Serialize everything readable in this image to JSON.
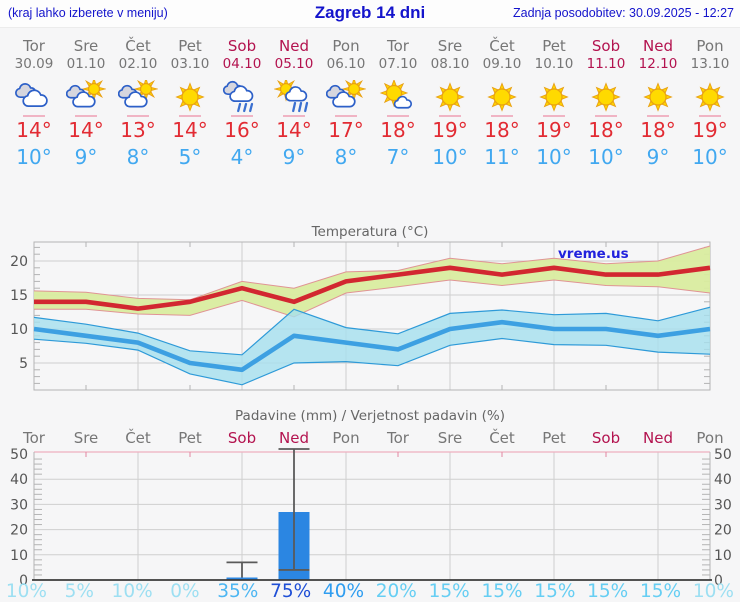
{
  "header": {
    "left": "(kraj lahko izberete v meniju)",
    "title": "Zagreb 14 dni",
    "right": "Zadnja posodobitev: 30.09.2025 - 12:27"
  },
  "watermark": "vreme.us",
  "colors": {
    "weekend": "#b3134f",
    "weekday": "#767676",
    "temp_max_text": "#e22b33",
    "temp_min_text": "#41a8f0",
    "line_red": "#d22730",
    "line_blue": "#3da0e2",
    "band_green": "#d9ec9f",
    "band_green_edge": "#e09494",
    "band_blue": "#a5e0ee",
    "band_blue_edge": "#2e9ad8",
    "bar_blue": "#2b86e2",
    "watermark_blue": "#2121dd",
    "header_blue": "#1414cc"
  },
  "days": [
    {
      "name": "Tor",
      "date": "30.09",
      "weekend": false,
      "icon": "cloudy",
      "tmax": "14°",
      "tmin": "10°",
      "prob": "10%",
      "prob_color": "#9ddff2"
    },
    {
      "name": "Sre",
      "date": "01.10",
      "weekend": false,
      "icon": "partly-cloudy",
      "tmax": "14°",
      "tmin": "9°",
      "prob": "5%",
      "prob_color": "#9ddff2"
    },
    {
      "name": "Čet",
      "date": "02.10",
      "weekend": false,
      "icon": "partly-cloudy",
      "tmax": "13°",
      "tmin": "8°",
      "prob": "10%",
      "prob_color": "#9ddff2"
    },
    {
      "name": "Pet",
      "date": "03.10",
      "weekend": false,
      "icon": "sunny",
      "tmax": "14°",
      "tmin": "5°",
      "prob": "0%",
      "prob_color": "#9ddff2"
    },
    {
      "name": "Sob",
      "date": "04.10",
      "weekend": true,
      "icon": "rain",
      "tmax": "16°",
      "tmin": "4°",
      "prob": "35%",
      "prob_color": "#4db6f2"
    },
    {
      "name": "Ned",
      "date": "05.10",
      "weekend": true,
      "icon": "sun-shower",
      "tmax": "14°",
      "tmin": "9°",
      "prob": "75%",
      "prob_color": "#1f4fd6"
    },
    {
      "name": "Pon",
      "date": "06.10",
      "weekend": false,
      "icon": "partly-cloudy",
      "tmax": "17°",
      "tmin": "8°",
      "prob": "40%",
      "prob_color": "#2f9df0"
    },
    {
      "name": "Tor",
      "date": "07.10",
      "weekend": false,
      "icon": "mostly-sunny",
      "tmax": "18°",
      "tmin": "7°",
      "prob": "20%",
      "prob_color": "#66cef3"
    },
    {
      "name": "Sre",
      "date": "08.10",
      "weekend": false,
      "icon": "sunny",
      "tmax": "19°",
      "tmin": "10°",
      "prob": "15%",
      "prob_color": "#66cef3"
    },
    {
      "name": "Čet",
      "date": "09.10",
      "weekend": false,
      "icon": "sunny",
      "tmax": "18°",
      "tmin": "11°",
      "prob": "15%",
      "prob_color": "#66cef3"
    },
    {
      "name": "Pet",
      "date": "10.10",
      "weekend": false,
      "icon": "sunny",
      "tmax": "19°",
      "tmin": "10°",
      "prob": "15%",
      "prob_color": "#66cef3"
    },
    {
      "name": "Sob",
      "date": "11.10",
      "weekend": true,
      "icon": "sunny",
      "tmax": "18°",
      "tmin": "10°",
      "prob": "15%",
      "prob_color": "#66cef3"
    },
    {
      "name": "Ned",
      "date": "12.10",
      "weekend": true,
      "icon": "sunny",
      "tmax": "18°",
      "tmin": "9°",
      "prob": "15%",
      "prob_color": "#66cef3"
    },
    {
      "name": "Pon",
      "date": "13.10",
      "weekend": false,
      "icon": "sunny",
      "tmax": "19°",
      "tmin": "10°",
      "prob": "10%",
      "prob_color": "#9ddff2"
    }
  ],
  "chart_data": [
    {
      "type": "line",
      "title": "Temperatura (°C)",
      "categories": [
        "Tor 30.09",
        "Sre 01.10",
        "Čet 02.10",
        "Pet 03.10",
        "Sob 04.10",
        "Ned 05.10",
        "Pon 06.10",
        "Tor 07.10",
        "Sre 08.10",
        "Čet 09.10",
        "Pet 10.10",
        "Sob 11.10",
        "Ned 12.10",
        "Pon 13.10"
      ],
      "yticks": [
        5,
        10,
        15,
        20
      ],
      "ylim": [
        1,
        22.8
      ],
      "grid": true,
      "series": [
        {
          "name": "max-temp",
          "color": "#d22730",
          "values": [
            14,
            14,
            13,
            14,
            16,
            14,
            17,
            18,
            19,
            18,
            19,
            18,
            18,
            19
          ]
        },
        {
          "name": "min-temp",
          "color": "#3da0e2",
          "values": [
            10,
            9,
            8,
            5,
            4,
            9,
            8,
            7,
            10,
            11,
            10,
            10,
            9,
            10
          ]
        },
        {
          "name": "max-band-upper",
          "values": [
            15.6,
            15.4,
            14.5,
            14.3,
            17.0,
            16.0,
            18.4,
            18.6,
            20.4,
            19.6,
            20.4,
            19.6,
            20.0,
            22.2
          ]
        },
        {
          "name": "max-band-lower",
          "values": [
            12.9,
            12.9,
            12.2,
            12.0,
            14.2,
            11.8,
            15.3,
            16.2,
            17.2,
            16.4,
            17.2,
            16.4,
            16.2,
            15.3
          ]
        },
        {
          "name": "min-band-upper",
          "values": [
            11.7,
            10.7,
            9.4,
            6.8,
            6.2,
            12.9,
            10.2,
            9.3,
            12.3,
            12.8,
            12.1,
            12.3,
            11.2,
            13.2
          ]
        },
        {
          "name": "min-band-lower",
          "values": [
            8.5,
            7.9,
            6.9,
            3.4,
            1.8,
            5.0,
            5.2,
            4.6,
            7.6,
            8.6,
            7.7,
            7.6,
            6.6,
            6.3
          ]
        }
      ]
    },
    {
      "type": "bar",
      "title": "Padavine (mm) / Verjetnost padavin (%)",
      "categories": [
        "Tor",
        "Sre",
        "Čet",
        "Pet",
        "Sob",
        "Ned",
        "Pon",
        "Tor",
        "Sre",
        "Čet",
        "Pet",
        "Sob",
        "Ned",
        "Pon"
      ],
      "yticks": [
        0,
        10,
        20,
        30,
        40,
        50
      ],
      "ylim": [
        0,
        52
      ],
      "grid": true,
      "values": [
        0,
        0,
        0,
        0,
        1,
        27,
        0,
        0,
        0,
        0,
        0,
        0,
        0,
        0
      ],
      "whiskers": [
        null,
        null,
        null,
        null,
        {
          "low": 1,
          "high": 7
        },
        {
          "low": 4,
          "high": 52
        },
        null,
        null,
        null,
        null,
        null,
        null,
        null,
        null
      ],
      "probabilities_percent": [
        10,
        5,
        10,
        0,
        35,
        75,
        40,
        20,
        15,
        15,
        15,
        15,
        15,
        10
      ]
    }
  ]
}
